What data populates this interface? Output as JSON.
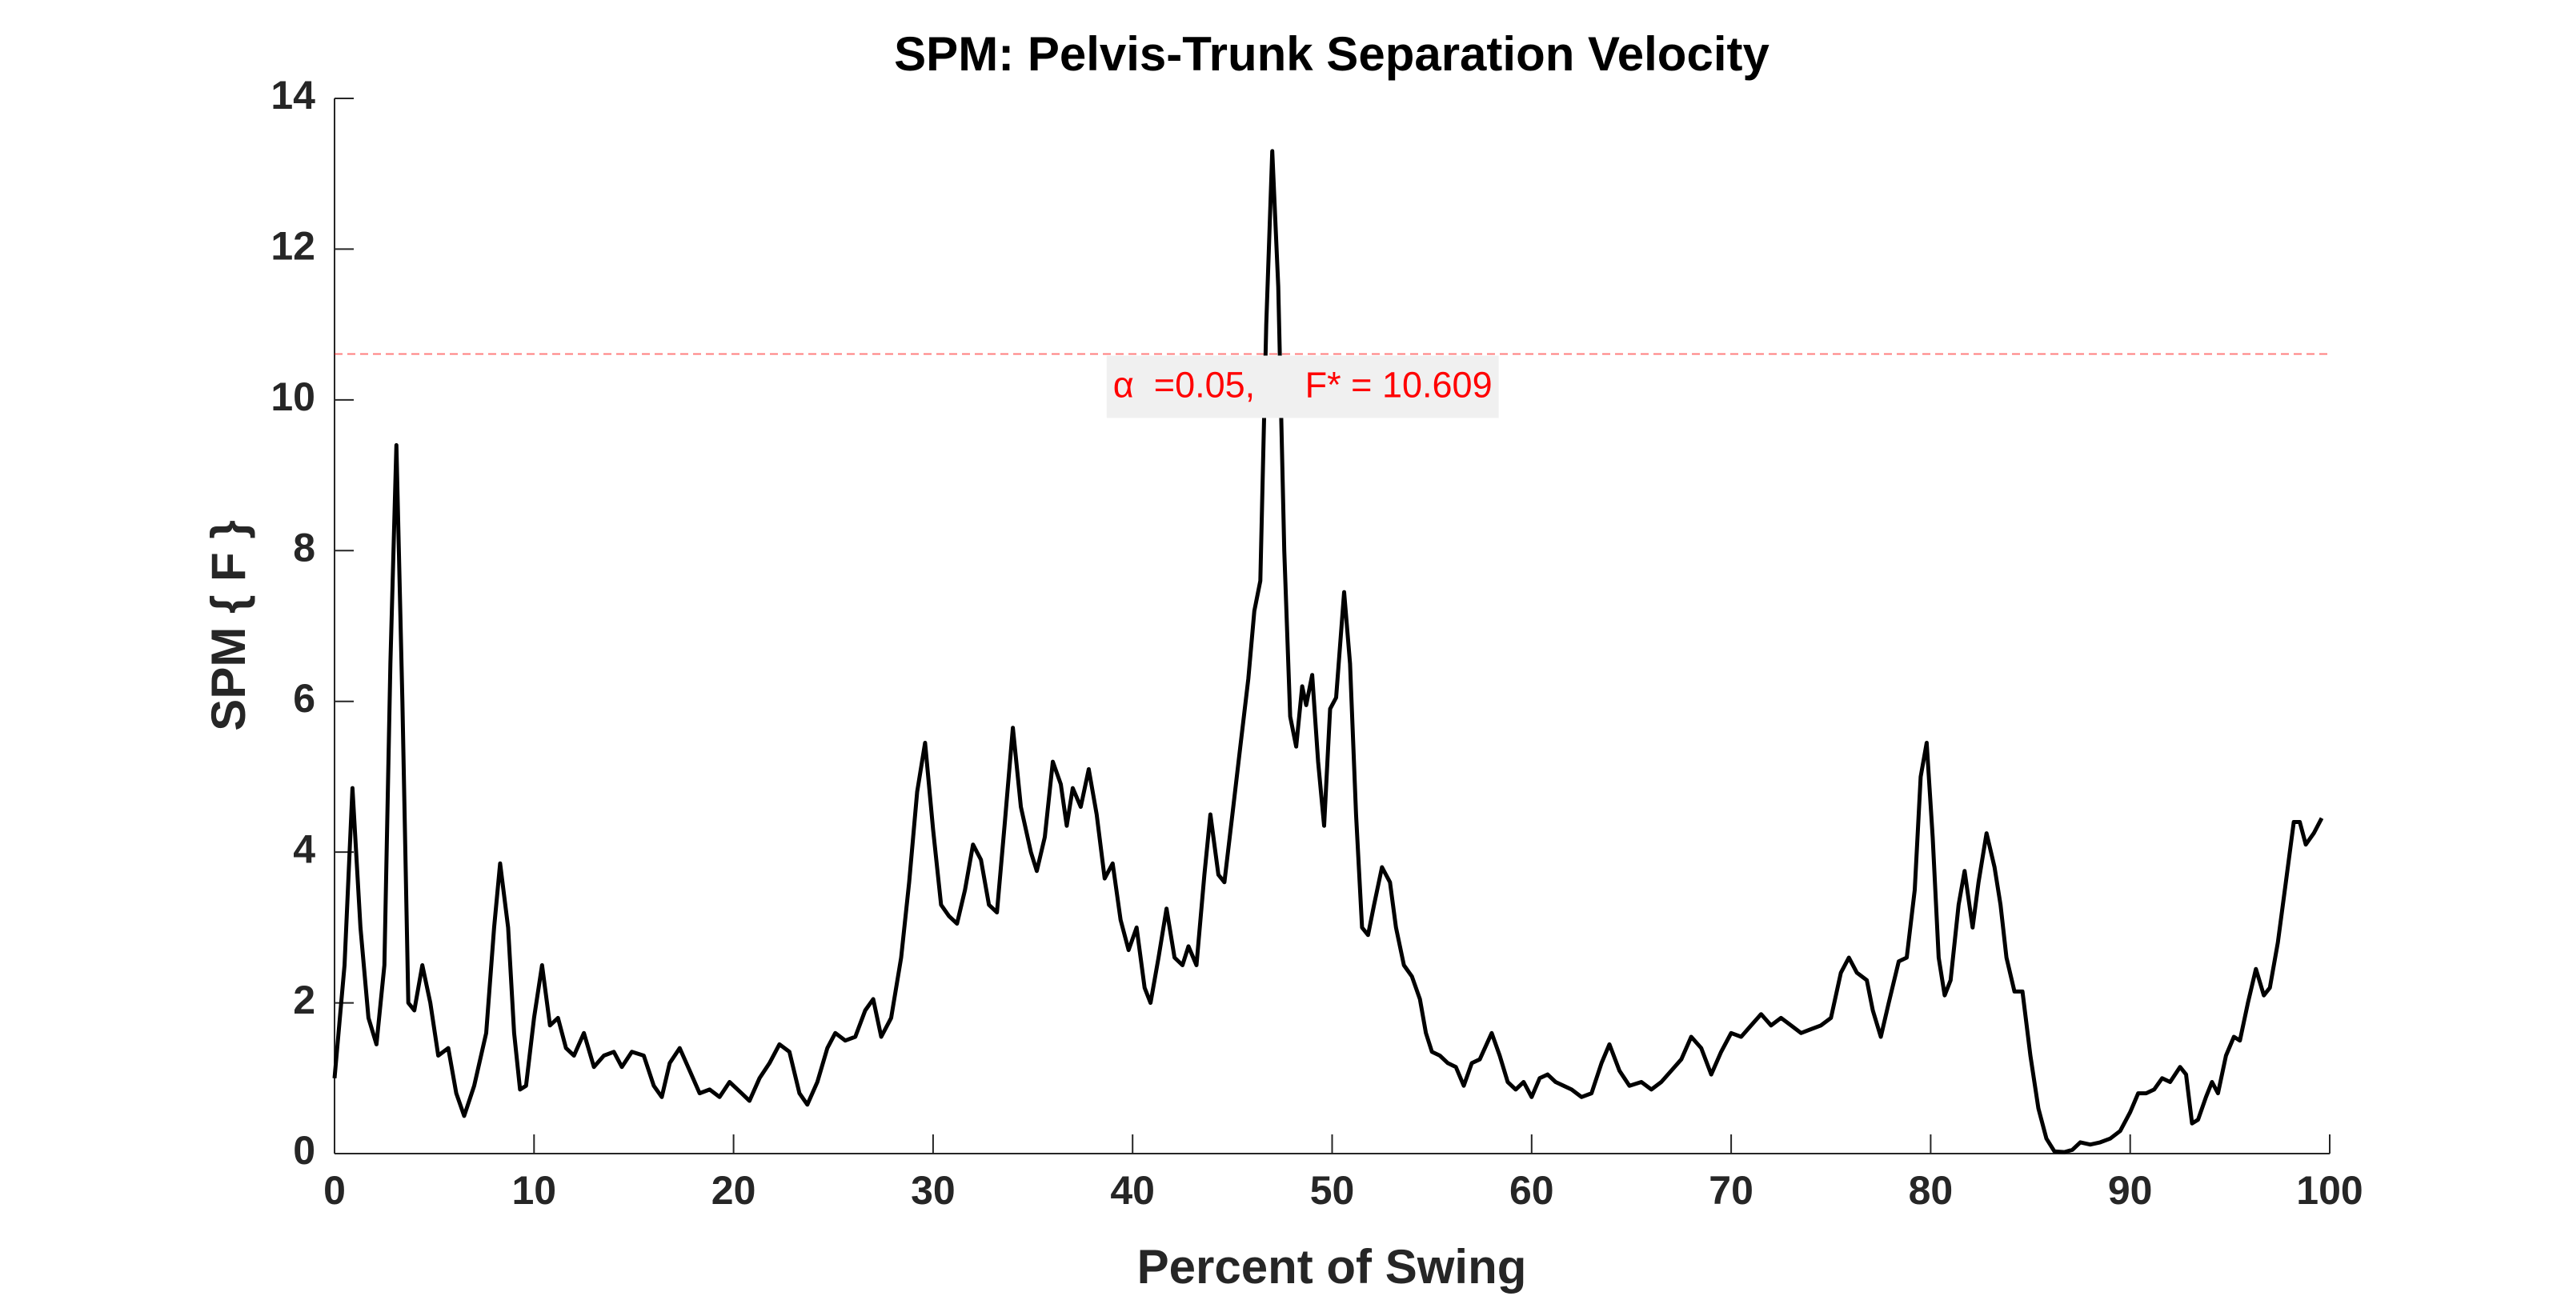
{
  "chart_data": {
    "type": "line",
    "title": "SPM: Pelvis-Trunk Separation Velocity",
    "xlabel": "Percent of Swing",
    "ylabel": "SPM { F }",
    "color": "#000000",
    "xlim": [
      0,
      100
    ],
    "xticks": [
      0,
      10,
      20,
      30,
      40,
      50,
      60,
      70,
      80,
      90,
      100
    ],
    "ylim": [
      0,
      14
    ],
    "yticks": [
      0,
      2,
      4,
      6,
      8,
      10,
      12,
      14
    ],
    "threshold": {
      "value": 10.609,
      "label": "α  =0.05,     F* = 10.609",
      "color": "#ff0000"
    },
    "x": [
      0,
      0.5,
      0.9,
      1.3,
      1.7,
      2.1,
      2.5,
      2.8,
      3.1,
      3.4,
      3.7,
      4.0,
      4.4,
      4.8,
      5.2,
      5.7,
      6.1,
      6.5,
      7.0,
      7.6,
      8.0,
      8.3,
      8.7,
      9.0,
      9.3,
      9.6,
      10.0,
      10.4,
      10.8,
      11.2,
      11.6,
      12.0,
      12.5,
      13.0,
      13.5,
      14.0,
      14.4,
      14.9,
      15.5,
      16.0,
      16.4,
      16.8,
      17.3,
      17.8,
      18.3,
      18.8,
      19.3,
      19.8,
      20.4,
      20.8,
      21.3,
      21.8,
      22.3,
      22.8,
      23.3,
      23.7,
      24.2,
      24.7,
      25.1,
      25.6,
      26.1,
      26.6,
      27.0,
      27.4,
      27.9,
      28.4,
      28.8,
      29.2,
      29.6,
      30.0,
      30.4,
      30.8,
      31.2,
      31.6,
      32.0,
      32.4,
      32.8,
      33.2,
      33.6,
      34.0,
      34.4,
      34.9,
      35.2,
      35.6,
      36.0,
      36.4,
      36.7,
      37.0,
      37.4,
      37.8,
      38.2,
      38.6,
      39.0,
      39.4,
      39.8,
      40.2,
      40.6,
      40.9,
      41.3,
      41.7,
      42.1,
      42.5,
      42.8,
      43.2,
      43.6,
      43.9,
      44.3,
      44.6,
      45.0,
      45.4,
      45.8,
      46.1,
      46.4,
      46.7,
      47.0,
      47.3,
      47.6,
      47.9,
      48.2,
      48.5,
      48.7,
      49.0,
      49.3,
      49.6,
      49.9,
      50.2,
      50.6,
      50.9,
      51.2,
      51.5,
      51.8,
      52.1,
      52.5,
      52.9,
      53.2,
      53.6,
      54.0,
      54.4,
      54.7,
      55.0,
      55.4,
      55.8,
      56.2,
      56.6,
      57.0,
      57.4,
      58.0,
      58.4,
      58.8,
      59.2,
      59.6,
      60.0,
      60.4,
      60.8,
      61.2,
      61.6,
      62.0,
      62.5,
      63.0,
      63.5,
      63.9,
      64.4,
      64.9,
      65.5,
      66.0,
      66.5,
      67.0,
      67.5,
      68.0,
      68.5,
      69.0,
      69.5,
      70.0,
      70.5,
      71.0,
      71.5,
      72.0,
      72.5,
      73.0,
      73.5,
      74.0,
      74.5,
      75.0,
      75.5,
      75.9,
      76.3,
      76.8,
      77.1,
      77.5,
      77.9,
      78.4,
      78.8,
      79.2,
      79.5,
      79.8,
      80.1,
      80.4,
      80.7,
      81.0,
      81.4,
      81.7,
      82.1,
      82.4,
      82.8,
      83.2,
      83.5,
      83.8,
      84.2,
      84.6,
      85.0,
      85.4,
      85.8,
      86.2,
      86.7,
      87.1,
      87.5,
      88.0,
      88.5,
      89.0,
      89.5,
      90.0,
      90.4,
      90.8,
      91.2,
      91.6,
      92.0,
      92.5,
      92.8,
      93.1,
      93.4,
      93.8,
      94.1,
      94.4,
      94.8,
      95.2,
      95.5,
      95.9,
      96.3,
      96.7,
      97.0,
      97.4,
      97.8,
      98.2,
      98.5,
      98.8,
      99.2,
      99.6
    ],
    "values": [
      1.0,
      2.5,
      4.85,
      3.0,
      1.8,
      1.45,
      2.5,
      6.5,
      9.4,
      6.0,
      2.0,
      1.9,
      2.5,
      2.0,
      1.3,
      1.4,
      0.8,
      0.5,
      0.9,
      1.6,
      3.0,
      3.85,
      3.0,
      1.6,
      0.85,
      0.9,
      1.8,
      2.5,
      1.7,
      1.8,
      1.4,
      1.3,
      1.6,
      1.15,
      1.3,
      1.35,
      1.15,
      1.35,
      1.3,
      0.9,
      0.75,
      1.2,
      1.4,
      1.1,
      0.8,
      0.85,
      0.75,
      0.95,
      0.8,
      0.7,
      1.0,
      1.2,
      1.45,
      1.35,
      0.8,
      0.65,
      0.95,
      1.4,
      1.6,
      1.5,
      1.55,
      1.9,
      2.05,
      1.55,
      1.8,
      2.6,
      3.6,
      4.8,
      5.45,
      4.3,
      3.3,
      3.15,
      3.05,
      3.5,
      4.1,
      3.9,
      3.3,
      3.2,
      4.4,
      5.65,
      4.6,
      4.0,
      3.75,
      4.2,
      5.2,
      4.9,
      4.35,
      4.85,
      4.6,
      5.1,
      4.5,
      3.65,
      3.85,
      3.1,
      2.7,
      3.0,
      2.2,
      2.0,
      2.6,
      3.25,
      2.6,
      2.5,
      2.75,
      2.5,
      3.7,
      4.5,
      3.7,
      3.6,
      4.5,
      5.4,
      6.3,
      7.2,
      7.6,
      11.0,
      13.3,
      11.5,
      8.0,
      5.8,
      5.4,
      6.2,
      5.95,
      6.35,
      5.2,
      4.35,
      5.9,
      6.05,
      7.45,
      6.5,
      4.5,
      3.0,
      2.9,
      3.3,
      3.8,
      3.6,
      3.0,
      2.5,
      2.35,
      2.05,
      1.6,
      1.35,
      1.3,
      1.2,
      1.15,
      0.9,
      1.2,
      1.25,
      1.6,
      1.3,
      0.95,
      0.85,
      0.95,
      0.75,
      1.0,
      1.05,
      0.95,
      0.9,
      0.85,
      0.75,
      0.8,
      1.2,
      1.45,
      1.1,
      0.9,
      0.95,
      0.85,
      0.95,
      1.1,
      1.25,
      1.55,
      1.4,
      1.05,
      1.35,
      1.6,
      1.55,
      1.7,
      1.85,
      1.7,
      1.8,
      1.7,
      1.6,
      1.65,
      1.7,
      1.8,
      2.4,
      2.6,
      2.4,
      2.3,
      1.9,
      1.55,
      2.0,
      2.55,
      2.6,
      3.5,
      5.0,
      5.45,
      4.2,
      2.6,
      2.1,
      2.3,
      3.3,
      3.75,
      3.0,
      3.6,
      4.25,
      3.8,
      3.3,
      2.6,
      2.15,
      2.15,
      1.3,
      0.6,
      0.2,
      0.03,
      0.02,
      0.05,
      0.15,
      0.12,
      0.15,
      0.2,
      0.3,
      0.55,
      0.8,
      0.8,
      0.85,
      1.0,
      0.95,
      1.15,
      1.05,
      0.4,
      0.45,
      0.75,
      0.95,
      0.8,
      1.3,
      1.55,
      1.5,
      2.0,
      2.45,
      2.1,
      2.2,
      2.8,
      3.6,
      4.4,
      4.4,
      4.1,
      4.25,
      4.45
    ]
  }
}
